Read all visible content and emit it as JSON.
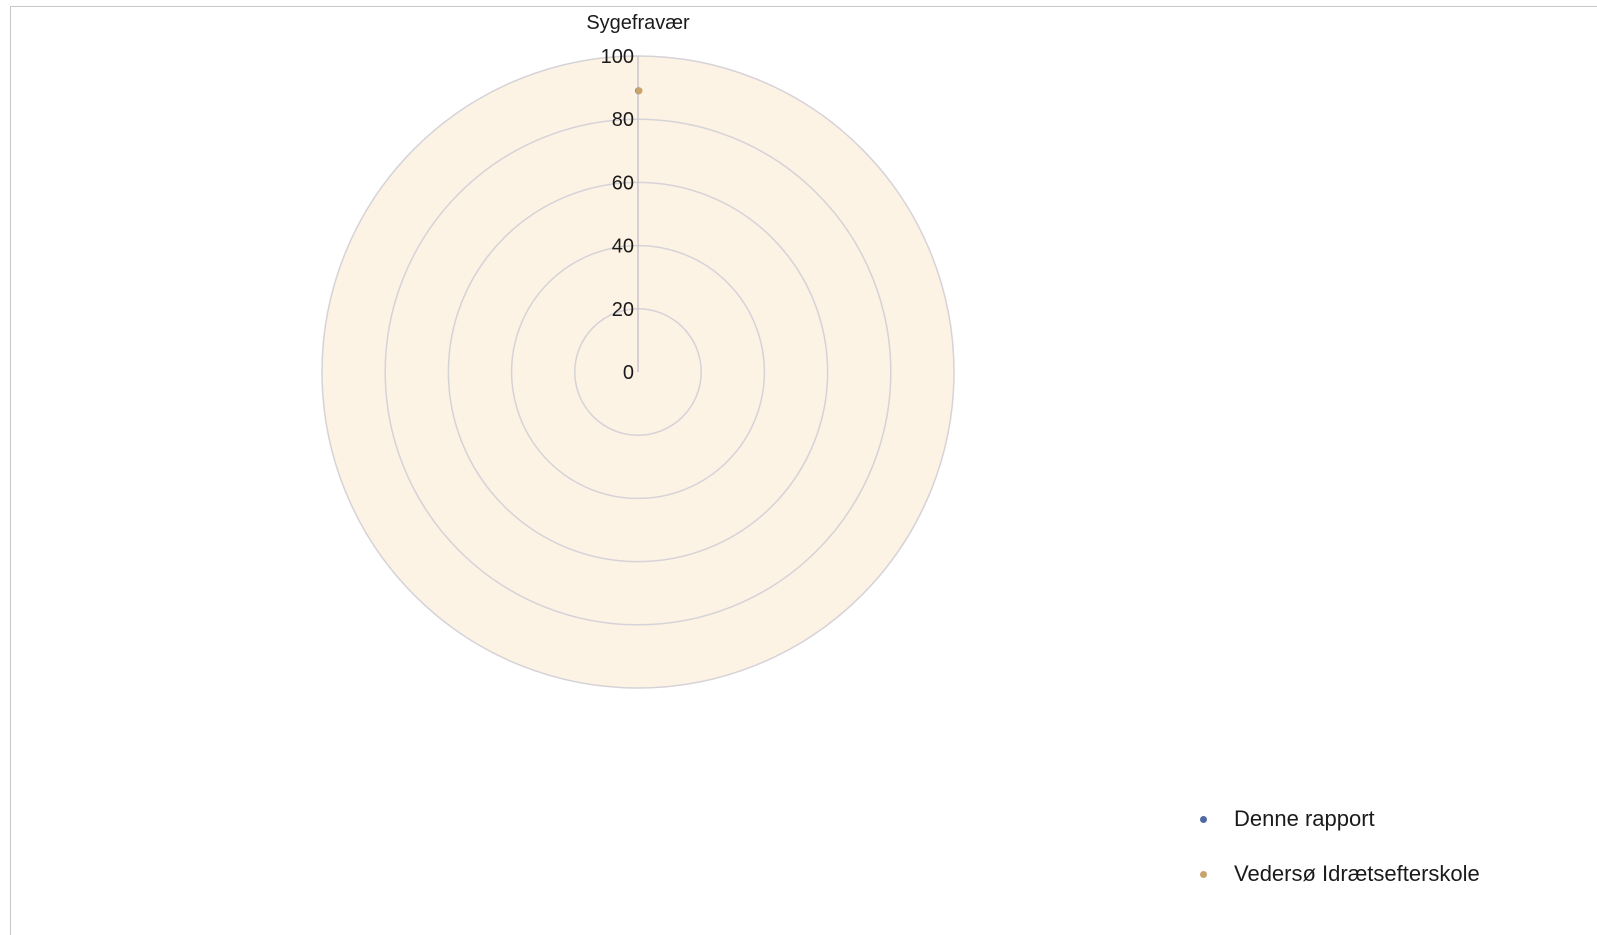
{
  "chart_data": {
    "type": "radar",
    "axis": "Sygefravær",
    "rlim": [
      0,
      100
    ],
    "ticks": [
      0,
      20,
      40,
      60,
      80,
      100
    ],
    "tick_labels": [
      "0",
      "20",
      "40",
      "60",
      "80",
      "100"
    ],
    "series": [
      {
        "name": "Denne rapport",
        "values": [
          89
        ],
        "color": "#4f6aa3"
      },
      {
        "name": "Vedersø Idrætsefterskole",
        "values": [
          89
        ],
        "color": "#c9a46a"
      }
    ],
    "plot_background": "#fcf3e4",
    "gridline_color": "#d6d2d8",
    "legend_position": "bottom-right",
    "grid": true
  }
}
